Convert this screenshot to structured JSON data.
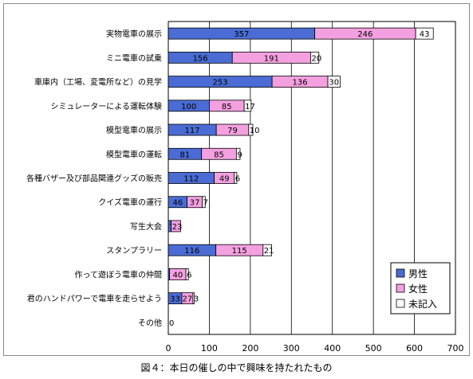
{
  "caption": "図４：本日の催しの中で興味を持たれたもの",
  "chart_data": {
    "type": "bar",
    "orientation": "horizontal",
    "stacked": true,
    "categories": [
      "実物電車の展示",
      "ミニ電車の試乗",
      "車庫内（工場、変電所など）の見学",
      "シミュレーターによる運転体験",
      "模型電車の展示",
      "模型電車の運転",
      "各種バザー及び部品関連グッズの販売",
      "クイズ電車の運行",
      "写生大会",
      "スタンプラリー",
      "作って遊ぼう電車の仲間",
      "君のハンドパワーで電車を走らせよう",
      "その他"
    ],
    "series": [
      {
        "name": "男性",
        "color": "#4a6cd4",
        "values": [
          357,
          156,
          253,
          100,
          117,
          81,
          112,
          46,
          7,
          116,
          3,
          33,
          0
        ]
      },
      {
        "name": "女性",
        "color": "#f4a0e0",
        "values": [
          246,
          191,
          136,
          85,
          79,
          85,
          49,
          37,
          23,
          115,
          40,
          27,
          0
        ]
      },
      {
        "name": "未記入",
        "color": "#ffffff",
        "values": [
          43,
          20,
          30,
          17,
          10,
          9,
          6,
          7,
          0,
          21,
          6,
          3,
          0
        ]
      }
    ],
    "value_labels": [
      [
        "357",
        "246",
        "43"
      ],
      [
        "156",
        "191",
        "20"
      ],
      [
        "253",
        "136",
        "30"
      ],
      [
        "100",
        "85",
        "17"
      ],
      [
        "117",
        "79",
        "10"
      ],
      [
        "81",
        "85",
        "9"
      ],
      [
        "112",
        "49",
        "6"
      ],
      [
        "46",
        "37",
        "7"
      ],
      [
        "7",
        "23",
        ""
      ],
      [
        "116",
        "115",
        "21"
      ],
      [
        "3",
        "40",
        "6"
      ],
      [
        "33",
        "27",
        "3"
      ],
      [
        "0",
        "",
        ""
      ]
    ],
    "xlim": [
      0,
      700
    ],
    "xticks": [
      0,
      100,
      200,
      300,
      400,
      500,
      600,
      700
    ],
    "grid": true,
    "legend_position": "bottom-right",
    "title": "",
    "xlabel": "",
    "ylabel": ""
  }
}
